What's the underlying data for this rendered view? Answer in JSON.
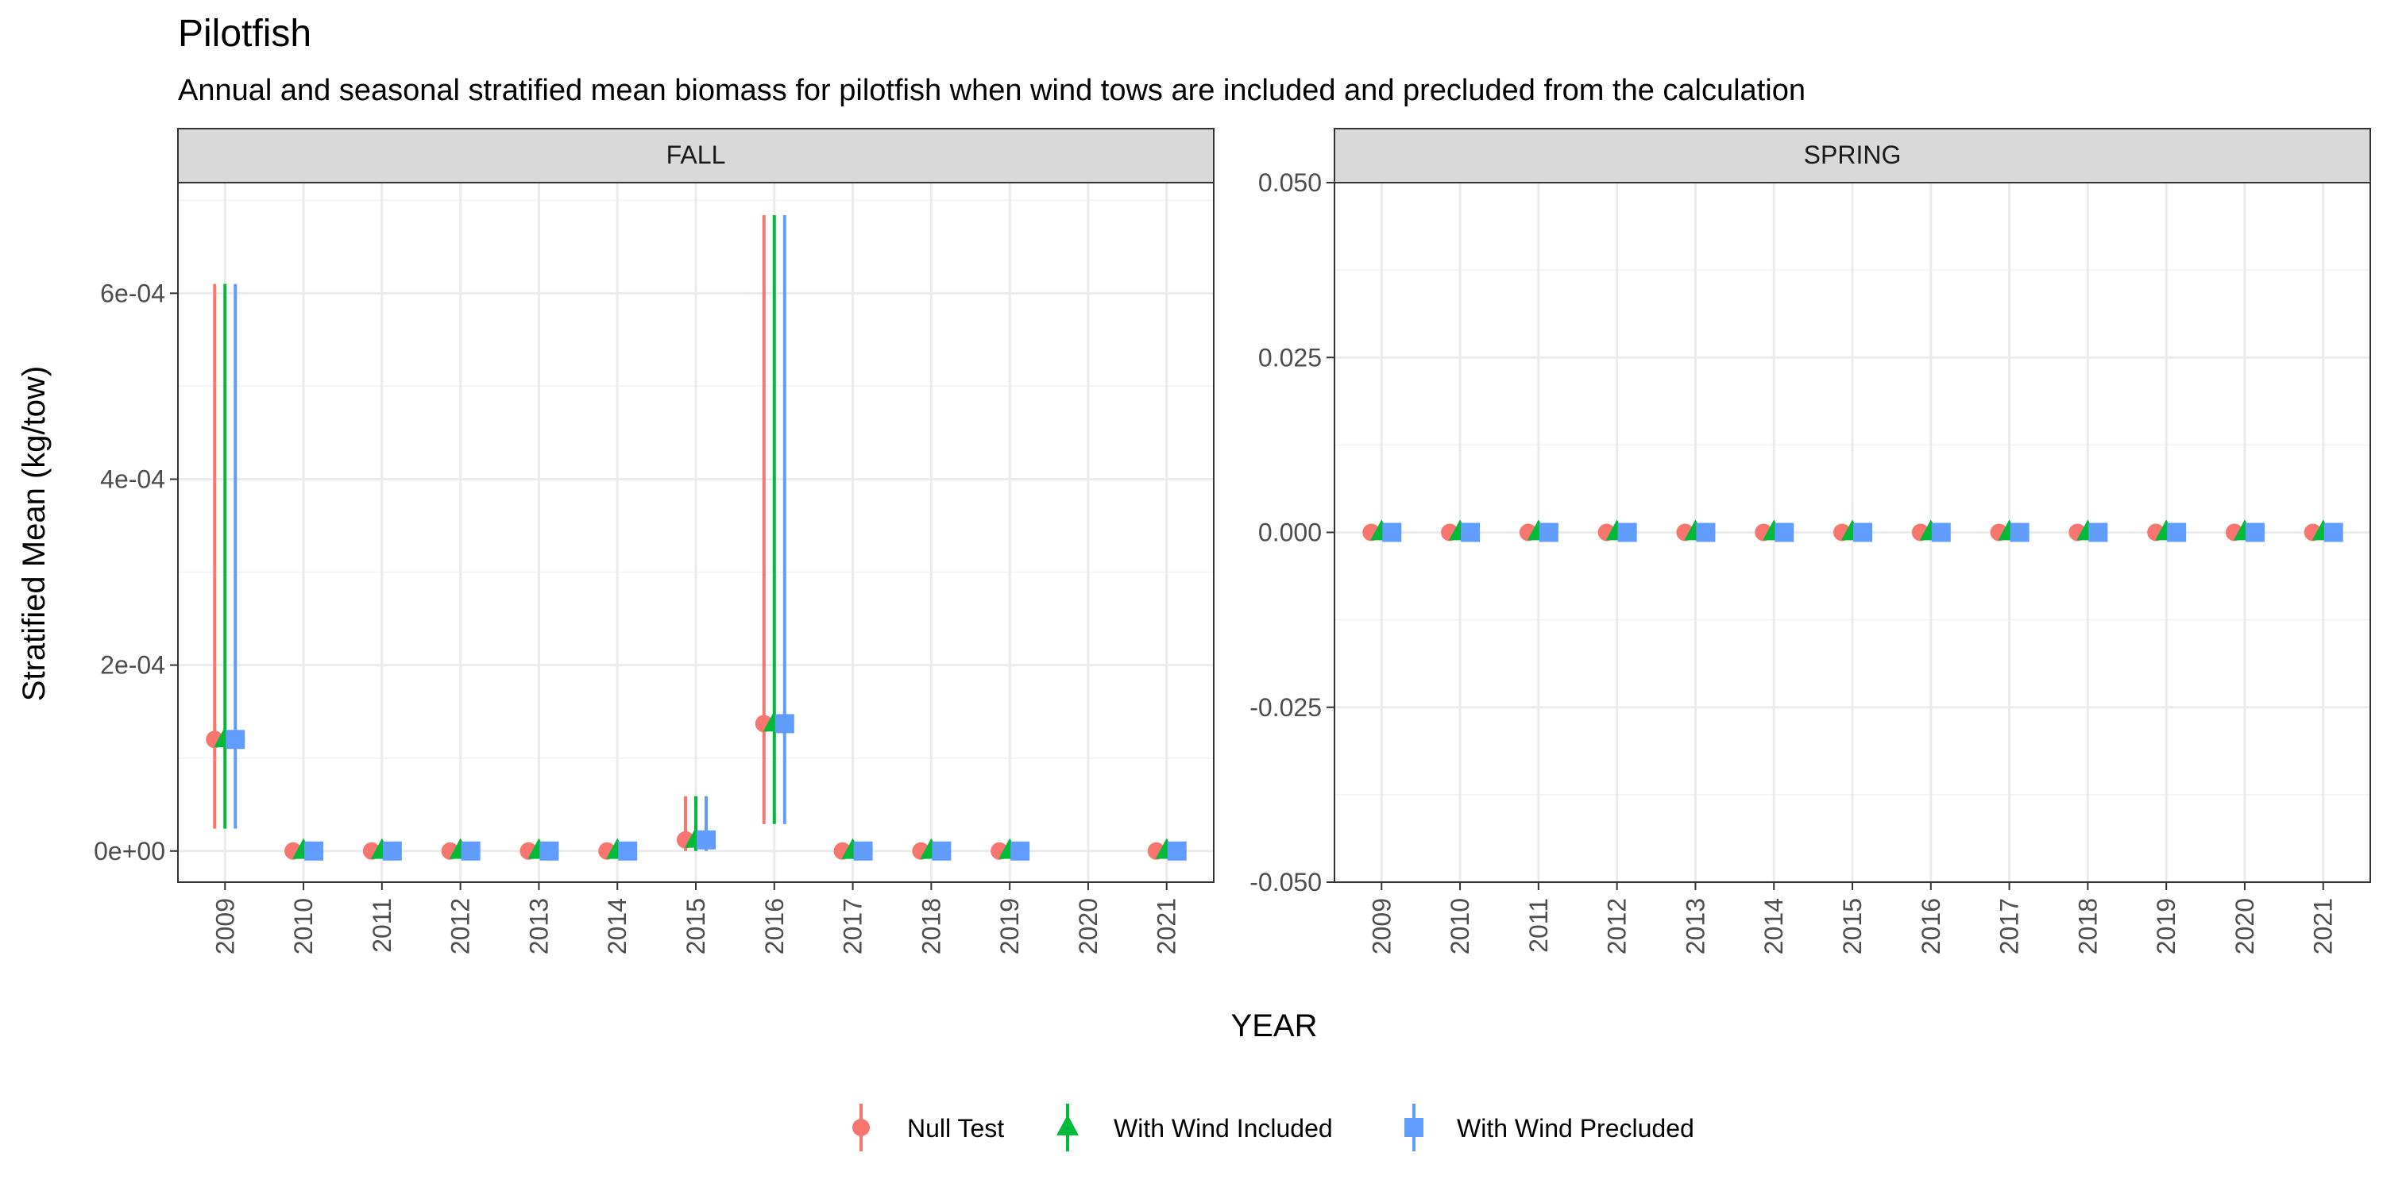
{
  "chart_data": {
    "type": "scatter",
    "title": "Pilotfish",
    "subtitle": "Annual and seasonal stratified mean biomass for pilotfish when wind tows are included and precluded from the calculation",
    "xlabel": "YEAR",
    "ylabel": "Stratified Mean (kg/tow)",
    "categories": [
      "2009",
      "2010",
      "2011",
      "2012",
      "2013",
      "2014",
      "2015",
      "2016",
      "2017",
      "2018",
      "2019",
      "2020",
      "2021"
    ],
    "legend": {
      "position": "bottom",
      "entries": [
        {
          "name": "Null Test",
          "color": "#F8766D",
          "shape": "circle"
        },
        {
          "name": "With Wind Included",
          "color": "#00BA38",
          "shape": "triangle"
        },
        {
          "name": "With Wind Precluded",
          "color": "#619CFF",
          "shape": "square"
        }
      ]
    },
    "grid": true,
    "panels": [
      {
        "label": "FALL",
        "ylim": [
          -3.35e-05,
          0.000719
        ],
        "yticks": [
          {
            "value": 0,
            "label": "0e+00"
          },
          {
            "value": 0.0002,
            "label": "2e-04"
          },
          {
            "value": 0.0004,
            "label": "4e-04"
          },
          {
            "value": 0.0006,
            "label": "6e-04"
          }
        ],
        "ygrid_minor": [
          0.0001,
          0.0003,
          0.0005,
          0.0007
        ],
        "series": [
          {
            "name": "Null Test",
            "values": [
              0.00012,
              0,
              0,
              0,
              0,
              0,
              1.2e-05,
              0.000137,
              0,
              0,
              0,
              null,
              0
            ],
            "lower": [
              2.4e-05,
              null,
              null,
              null,
              null,
              null,
              0,
              2.9e-05,
              null,
              null,
              null,
              null,
              null
            ],
            "upper": [
              0.00061,
              null,
              null,
              null,
              null,
              null,
              5.9e-05,
              0.000684,
              null,
              null,
              null,
              null,
              null
            ]
          },
          {
            "name": "With Wind Included",
            "values": [
              0.00012,
              0,
              0,
              0,
              0,
              0,
              1.2e-05,
              0.000137,
              0,
              0,
              0,
              null,
              0
            ],
            "lower": [
              2.4e-05,
              null,
              null,
              null,
              null,
              null,
              0,
              2.9e-05,
              null,
              null,
              null,
              null,
              null
            ],
            "upper": [
              0.00061,
              null,
              null,
              null,
              null,
              null,
              5.9e-05,
              0.000684,
              null,
              null,
              null,
              null,
              null
            ]
          },
          {
            "name": "With Wind Precluded",
            "values": [
              0.00012,
              0,
              0,
              0,
              0,
              0,
              1.2e-05,
              0.000137,
              0,
              0,
              0,
              null,
              0
            ],
            "lower": [
              2.4e-05,
              null,
              null,
              null,
              null,
              null,
              0,
              2.9e-05,
              null,
              null,
              null,
              null,
              null
            ],
            "upper": [
              0.00061,
              null,
              null,
              null,
              null,
              null,
              5.9e-05,
              0.000684,
              null,
              null,
              null,
              null,
              null
            ]
          }
        ]
      },
      {
        "label": "SPRING",
        "ylim": [
          -0.05,
          0.05
        ],
        "yticks": [
          {
            "value": -0.05,
            "label": "-0.050"
          },
          {
            "value": -0.025,
            "label": "-0.025"
          },
          {
            "value": 0,
            "label": "0.000"
          },
          {
            "value": 0.025,
            "label": "0.025"
          },
          {
            "value": 0.05,
            "label": "0.050"
          }
        ],
        "ygrid_minor": [
          -0.0375,
          -0.0125,
          0.0125,
          0.0375
        ],
        "series": [
          {
            "name": "Null Test",
            "values": [
              0,
              0,
              0,
              0,
              0,
              0,
              0,
              0,
              0,
              0,
              0,
              0,
              0
            ]
          },
          {
            "name": "With Wind Included",
            "values": [
              0,
              0,
              0,
              0,
              0,
              0,
              0,
              0,
              0,
              0,
              0,
              0,
              0
            ]
          },
          {
            "name": "With Wind Precluded",
            "values": [
              0,
              0,
              0,
              0,
              0,
              0,
              0,
              0,
              0,
              0,
              0,
              0,
              0
            ]
          }
        ]
      }
    ]
  }
}
